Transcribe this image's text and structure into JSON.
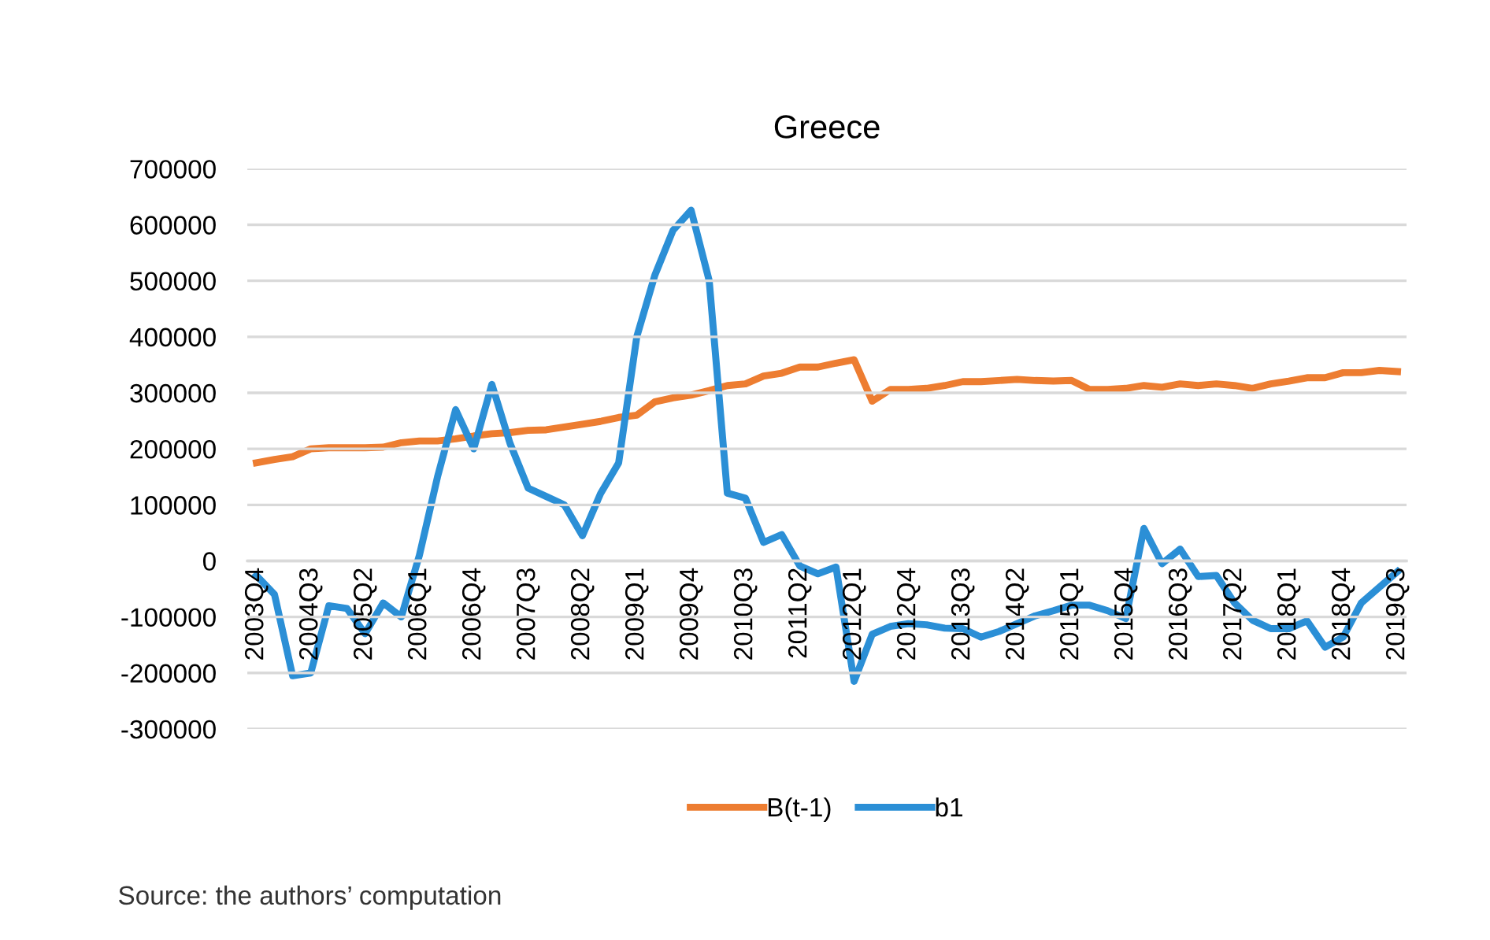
{
  "chart_data": {
    "type": "line",
    "title": "Greece",
    "categories": [
      "2003Q4",
      null,
      null,
      "2004Q3",
      null,
      null,
      "2005Q2",
      null,
      null,
      "2006Q1",
      null,
      null,
      "2006Q4",
      null,
      null,
      "2007Q3",
      null,
      null,
      "2008Q2",
      null,
      null,
      "2009Q1",
      null,
      null,
      "2009Q4",
      null,
      null,
      "2010Q3",
      null,
      null,
      "2011Q2",
      null,
      null,
      "2012Q1",
      null,
      null,
      "2012Q4",
      null,
      null,
      "2013Q3",
      null,
      null,
      "2014Q2",
      null,
      null,
      "2015Q1",
      null,
      null,
      "2015Q4",
      null,
      null,
      "2016Q3",
      null,
      null,
      "2017Q2",
      null,
      null,
      "2018Q1",
      null,
      null,
      "2018Q4",
      null,
      null,
      "2019Q3"
    ],
    "series": [
      {
        "name": "B(t-1)",
        "color": "#ed7d31",
        "values": [
          175000,
          181000,
          186000,
          200000,
          202000,
          202000,
          202000,
          203000,
          211000,
          214000,
          214000,
          218000,
          223000,
          227000,
          229000,
          233000,
          234000,
          239000,
          244000,
          249000,
          256000,
          260000,
          284000,
          291000,
          296000,
          304000,
          313000,
          316000,
          330000,
          335000,
          346000,
          346000,
          353000,
          359000,
          285000,
          306000,
          306000,
          308000,
          313000,
          320000,
          320000,
          322000,
          324000,
          322000,
          321000,
          322000,
          306000,
          306000,
          308000,
          313000,
          310000,
          316000,
          313000,
          316000,
          313000,
          308000,
          316000,
          321000,
          327000,
          327000,
          336000,
          336000,
          340000,
          338000
        ]
      },
      {
        "name": "b1",
        "color": "#2b8fd6",
        "values": [
          -26000,
          -60000,
          -205000,
          -200000,
          -80000,
          -85000,
          -130000,
          -75000,
          -100000,
          10000,
          150000,
          270000,
          200000,
          315000,
          210000,
          130000,
          115000,
          100000,
          45000,
          120000,
          175000,
          400000,
          510000,
          590000,
          626000,
          500000,
          121000,
          112000,
          33000,
          47000,
          -9000,
          -23000,
          -11000,
          -215000,
          -131000,
          -117000,
          -112000,
          -114000,
          -120000,
          -121000,
          -136000,
          -126000,
          -112000,
          -98000,
          -89000,
          -79000,
          -79000,
          -89000,
          -103000,
          58000,
          -5000,
          21000,
          -28000,
          -26000,
          -75000,
          -106000,
          -121000,
          -121000,
          -107000,
          -154000,
          -136000,
          -75000,
          -47000,
          -19000
        ]
      }
    ],
    "ylim": [
      -300000,
      700000
    ],
    "yticks": [
      -300000,
      -200000,
      -100000,
      0,
      100000,
      200000,
      300000,
      400000,
      500000,
      600000,
      700000
    ],
    "grid": "y",
    "legend": "bottom",
    "marker": "none",
    "line_style": "solid",
    "annotations": [
      "Source: the authors’ computation"
    ]
  }
}
